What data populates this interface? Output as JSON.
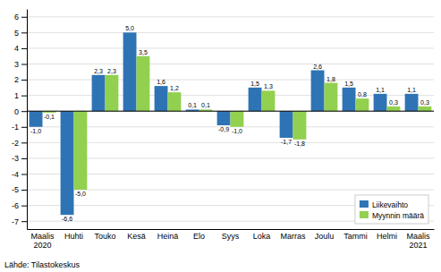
{
  "chart_data": {
    "type": "bar",
    "categories": [
      "Maalis\n2020",
      "Huhti",
      "Touko",
      "Kesä",
      "Heinä",
      "Elo",
      "Syys",
      "Loka",
      "Marras",
      "Joulu",
      "Tammi",
      "Helmi",
      "Maalis\n2021"
    ],
    "series": [
      {
        "name": "Liikevaihto",
        "color": "#2E74B5",
        "values": [
          -1.0,
          -6.6,
          2.3,
          5.0,
          1.6,
          0.1,
          -0.9,
          1.5,
          -1.7,
          2.6,
          1.5,
          1.1,
          1.1
        ],
        "value_labels": [
          "-1,0",
          "-6,6",
          "2,3",
          "5,0",
          "1,6",
          "0,1",
          "-0,9",
          "1,5",
          "-1,7",
          "2,6",
          "1,5",
          "1,1",
          "1,1"
        ]
      },
      {
        "name": "Myynnin määrä",
        "color": "#92D050",
        "values": [
          -0.1,
          -5.0,
          2.3,
          3.5,
          1.2,
          0.1,
          -1.0,
          1.3,
          -1.8,
          1.8,
          0.8,
          0.3,
          0.3
        ],
        "value_labels": [
          "-0,1",
          "-5,0",
          "2,3",
          "3,5",
          "1,2",
          "0,1",
          "-1,0",
          "1,3",
          "-1,8",
          "1,8",
          "0,8",
          "0,3",
          "0,3"
        ]
      }
    ],
    "ylim": [
      -7.5,
      6.5
    ],
    "yticks": [
      -7,
      -6,
      -5,
      -4,
      -3,
      -2,
      -1,
      0,
      1,
      2,
      3,
      4,
      5,
      6
    ],
    "grid": true,
    "legend": "lower right",
    "data_labels": true,
    "annotations": [
      "Lähde: Tilastokeskus"
    ]
  }
}
